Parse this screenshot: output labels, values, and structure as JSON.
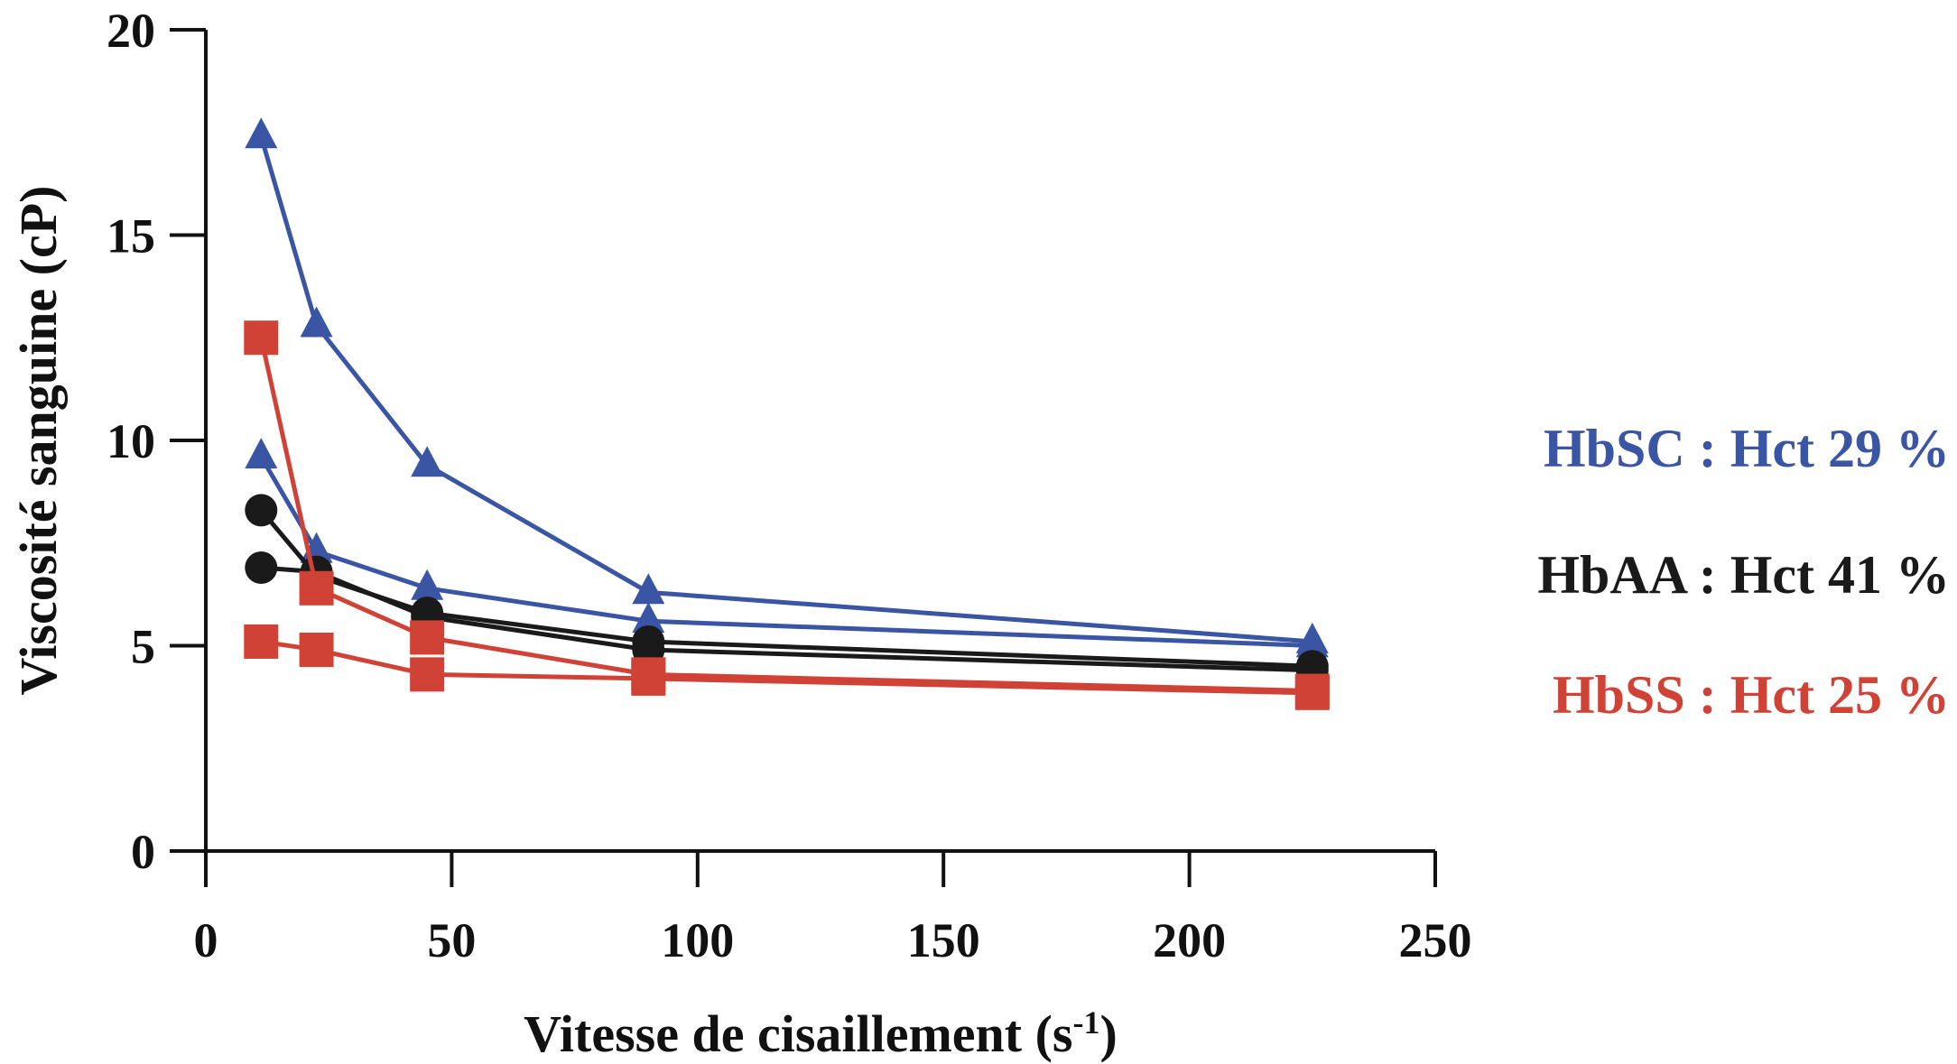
{
  "chart_data": {
    "type": "line",
    "title": "",
    "xlabel": "Vitesse de cisaillement (s",
    "xlabel_superscript": "-1",
    "xlabel_close": ")",
    "ylabel": "Viscosité sanguine (cP)",
    "xlim": [
      0,
      250
    ],
    "ylim": [
      0,
      20
    ],
    "x_ticks": [
      0,
      50,
      100,
      150,
      200,
      250
    ],
    "y_ticks": [
      0,
      5,
      10,
      15,
      20
    ],
    "grid": false,
    "legend_position": "right",
    "legend": [
      {
        "text": "HbSC : Hct 29 %",
        "color": "#3a55a4"
      },
      {
        "text": "HbAA : Hct 41 %",
        "color": "#1a1a1a"
      },
      {
        "text": "HbSS : Hct 25 %",
        "color": "#d04236"
      }
    ],
    "series": [
      {
        "group": 0,
        "color": "#3a55a4",
        "marker": "triangle",
        "x": [
          11.25,
          22.5,
          45,
          90,
          225
        ],
        "y": [
          17.4,
          12.8,
          9.4,
          6.3,
          5.1
        ]
      },
      {
        "group": 0,
        "color": "#3a55a4",
        "marker": "triangle",
        "x": [
          11.25,
          22.5,
          45,
          90,
          225
        ],
        "y": [
          9.6,
          7.3,
          6.4,
          5.6,
          5.0
        ]
      },
      {
        "group": 1,
        "color": "#1a1a1a",
        "marker": "circle",
        "x": [
          11.25,
          22.5,
          45,
          90,
          225
        ],
        "y": [
          8.3,
          6.7,
          5.8,
          5.1,
          4.5
        ]
      },
      {
        "group": 1,
        "color": "#1a1a1a",
        "marker": "circle",
        "x": [
          11.25,
          22.5,
          45,
          90,
          225
        ],
        "y": [
          6.9,
          6.8,
          5.7,
          4.9,
          4.4
        ]
      },
      {
        "group": 2,
        "color": "#d04236",
        "marker": "square",
        "x": [
          11.25,
          22.5,
          45,
          90,
          225
        ],
        "y": [
          12.5,
          6.4,
          5.2,
          4.3,
          3.9
        ]
      },
      {
        "group": 2,
        "color": "#d04236",
        "marker": "square",
        "x": [
          11.25,
          22.5,
          45,
          90,
          225
        ],
        "y": [
          5.1,
          4.9,
          4.3,
          4.2,
          3.85
        ]
      }
    ]
  }
}
